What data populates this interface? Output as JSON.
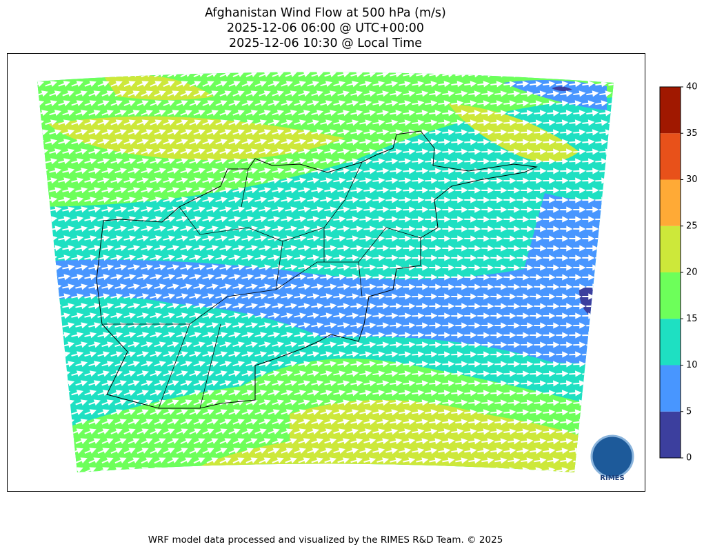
{
  "title": [
    "Afghanistan Wind Flow at 500 hPa (m/s)",
    "2025-12-06 06:00 @ UTC+00:00",
    "2025-12-06 10:30 @ Local Time"
  ],
  "colorbar": {
    "ticks": [
      0,
      5,
      10,
      15,
      20,
      25,
      30,
      35,
      40
    ],
    "colors": [
      "#3c3f9e",
      "#4896ff",
      "#1ee0c2",
      "#6dff5a",
      "#cde83a",
      "#ffaa36",
      "#e8511a",
      "#a01800"
    ]
  },
  "logo": "RIMES",
  "footer": "WRF model data processed and visualized by the RIMES R&D Team. © 2025"
}
